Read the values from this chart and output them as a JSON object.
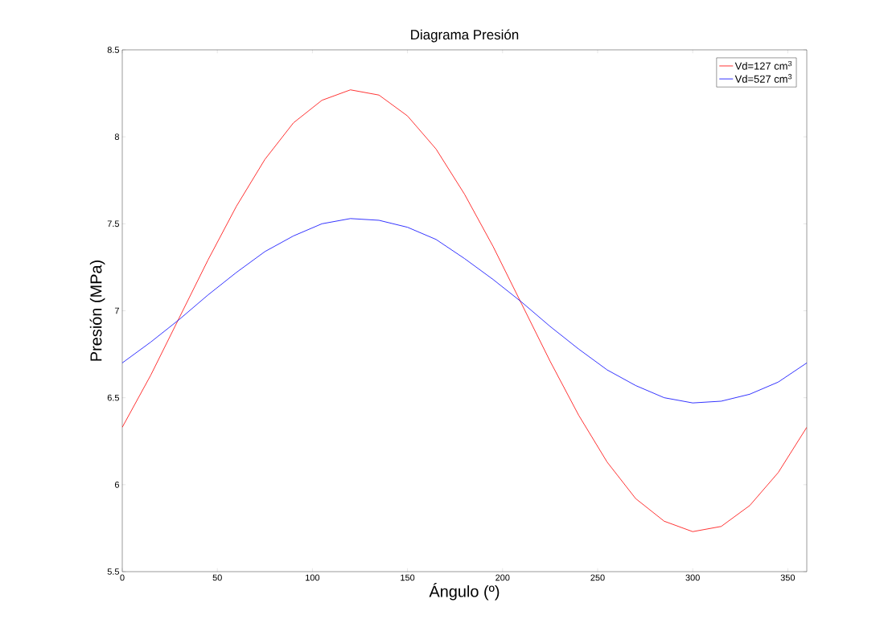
{
  "chart_data": {
    "type": "line",
    "title": "Diagrama Presión",
    "xlabel": "Ángulo (º)",
    "ylabel": "Presión (MPa)",
    "x": [
      0,
      15,
      30,
      45,
      60,
      75,
      90,
      105,
      120,
      135,
      150,
      165,
      180,
      195,
      210,
      225,
      240,
      255,
      270,
      285,
      300,
      315,
      330,
      345,
      360
    ],
    "series": [
      {
        "name": "Vd=127 cm$^{3}$",
        "color": "#ff0000",
        "values": [
          6.33,
          6.63,
          6.96,
          7.29,
          7.6,
          7.87,
          8.08,
          8.21,
          8.27,
          8.24,
          8.12,
          7.93,
          7.67,
          7.37,
          7.04,
          6.71,
          6.4,
          6.13,
          5.92,
          5.79,
          5.73,
          5.76,
          5.88,
          6.07,
          6.33
        ]
      },
      {
        "name": "Vd=527 cm$^{3}$",
        "color": "#0000ff",
        "values": [
          6.7,
          6.82,
          6.95,
          7.09,
          7.22,
          7.34,
          7.43,
          7.5,
          7.53,
          7.52,
          7.48,
          7.41,
          7.3,
          7.18,
          7.05,
          6.91,
          6.78,
          6.66,
          6.57,
          6.5,
          6.47,
          6.48,
          6.52,
          6.59,
          6.7
        ]
      }
    ],
    "xlim": [
      0,
      360
    ],
    "ylim": [
      5.5,
      8.5
    ],
    "xticks": [
      0,
      50,
      100,
      150,
      200,
      250,
      300,
      350
    ],
    "yticks": [
      5.5,
      6,
      6.5,
      7,
      7.5,
      8,
      8.5
    ],
    "grid": false,
    "legend": "top right",
    "marker": "none",
    "line_style": "solid"
  }
}
